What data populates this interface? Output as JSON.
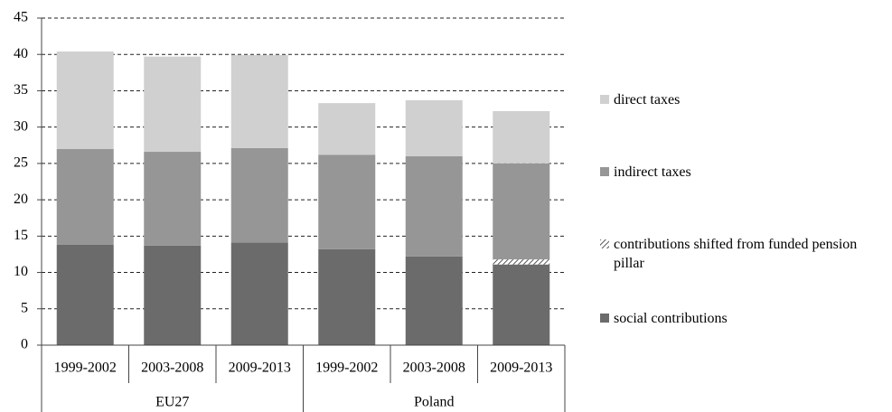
{
  "chart_data": {
    "type": "stacked-bar",
    "categories": [
      "1999-2002",
      "2003-2008",
      "2009-2013",
      "1999-2002",
      "2003-2008",
      "2009-2013"
    ],
    "groups": [
      "EU27",
      "Poland"
    ],
    "series": [
      {
        "name": "social contributions",
        "color": "#6b6b6b",
        "values": [
          13.8,
          13.7,
          14.1,
          13.2,
          12.2,
          11.1
        ]
      },
      {
        "name": "contributions shifted from funded pension pillar",
        "color": "#555555",
        "pattern": "hatch",
        "values": [
          null,
          null,
          null,
          null,
          null,
          0.7
        ]
      },
      {
        "name": "indirect taxes",
        "color": "#969696",
        "values": [
          13.2,
          12.9,
          13.0,
          13.0,
          13.8,
          13.2
        ]
      },
      {
        "name": "direct taxes",
        "color": "#d0d0d0",
        "values": [
          13.4,
          13.1,
          12.8,
          7.1,
          7.7,
          7.2
        ]
      }
    ],
    "ylim": [
      0,
      45
    ],
    "yticks": [
      0,
      5,
      10,
      15,
      20,
      25,
      30,
      35,
      40,
      45
    ],
    "grid": true,
    "legend": "right"
  }
}
